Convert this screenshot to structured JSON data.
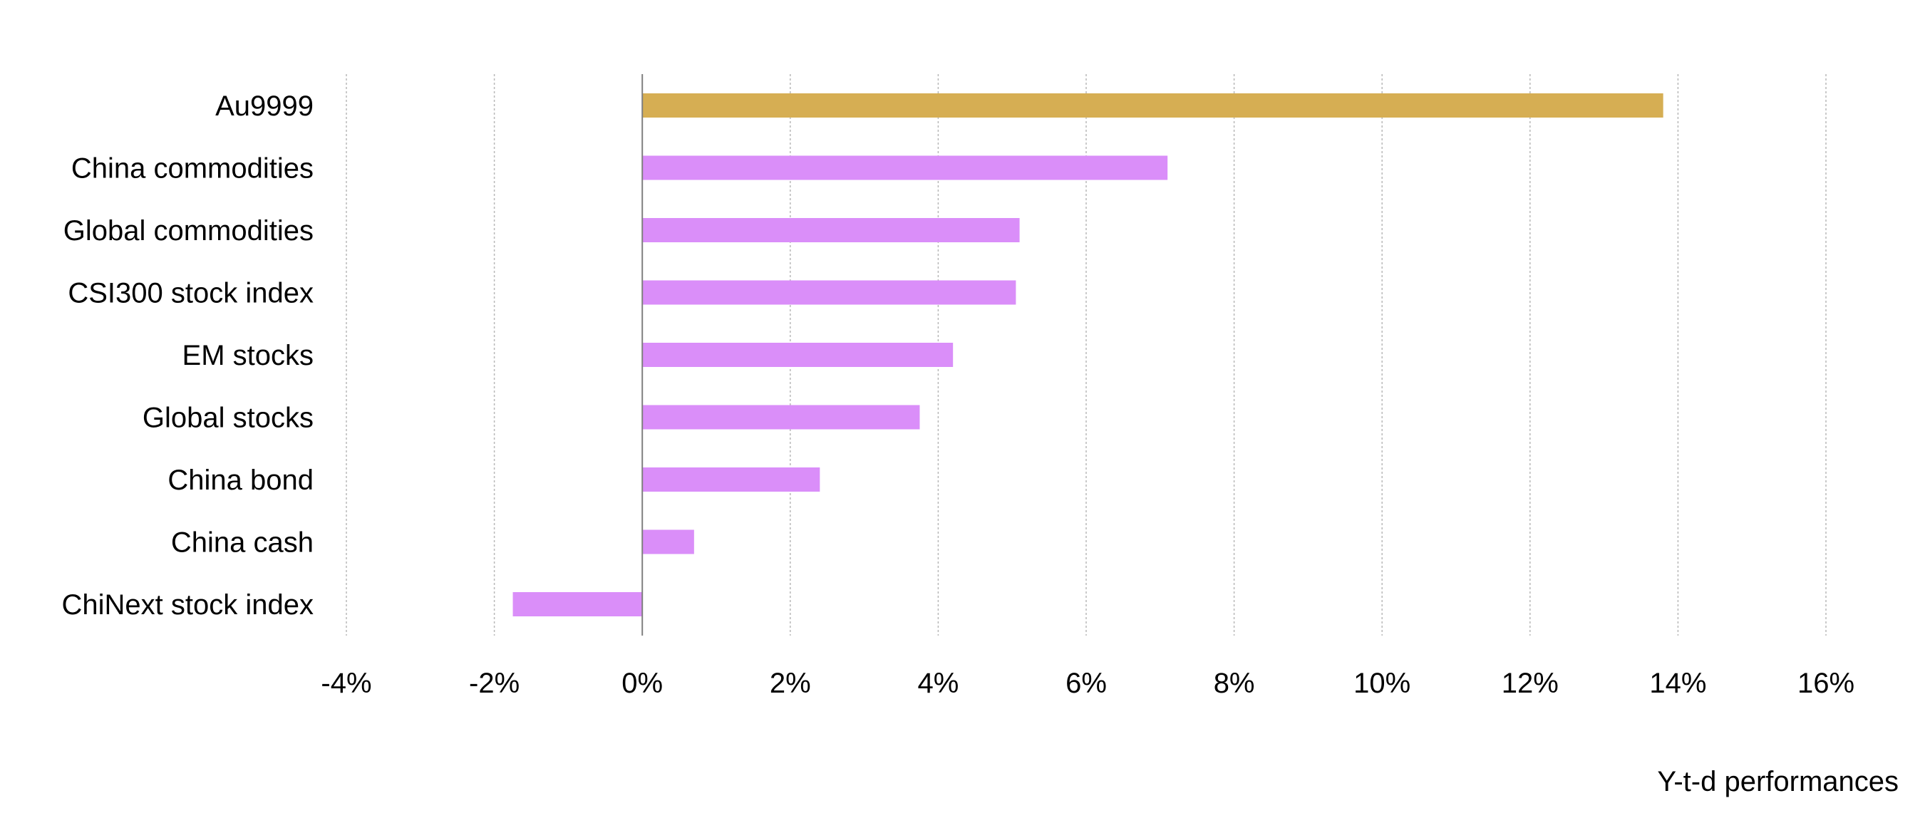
{
  "chart_data": {
    "type": "bar",
    "orientation": "horizontal",
    "categories": [
      "Au9999",
      "China commodities",
      "Global commodities",
      "CSI300 stock index",
      "EM stocks",
      "Global stocks",
      "China bond",
      "China cash",
      "ChiNext stock index"
    ],
    "values": [
      13.8,
      7.1,
      5.1,
      5.05,
      4.2,
      3.75,
      2.4,
      0.7,
      -1.75
    ],
    "bar_colors": [
      "#D6AE53",
      "#DA8EF9",
      "#DA8EF9",
      "#DA8EF9",
      "#DA8EF9",
      "#DA8EF9",
      "#DA8EF9",
      "#DA8EF9",
      "#DA8EF9"
    ],
    "xlabel": "Y-t-d performances",
    "ylabel": "",
    "xlim": [
      -4,
      16
    ],
    "x_ticks": [
      -4,
      -2,
      0,
      2,
      4,
      6,
      8,
      10,
      12,
      14,
      16
    ],
    "x_tick_labels": [
      "-4%",
      "-2%",
      "0%",
      "2%",
      "4%",
      "6%",
      "8%",
      "10%",
      "12%",
      "14%",
      "16%"
    ],
    "grid": true,
    "grid_style": "dotted",
    "legend": "none"
  }
}
